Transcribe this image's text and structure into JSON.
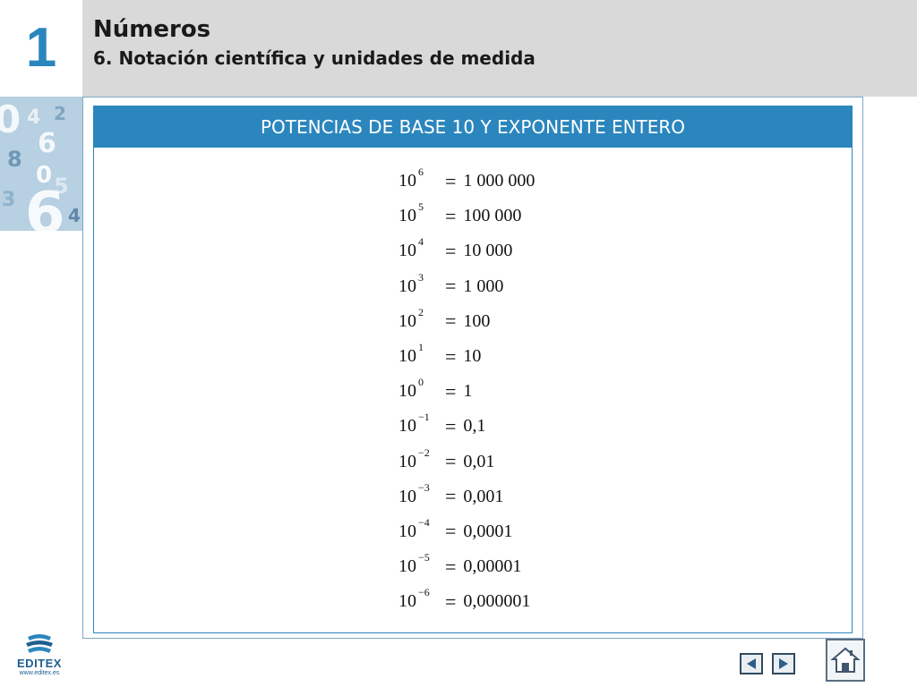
{
  "header": {
    "chapter_number": "1",
    "title": "Números",
    "subtitle": "6. Notación científica y unidades de medida"
  },
  "panel": {
    "title": "POTENCIAS DE BASE 10 Y EXPONENTE ENTERO",
    "powers": [
      {
        "base": "10",
        "exponent": "6",
        "value": "1 000 000"
      },
      {
        "base": "10",
        "exponent": "5",
        "value": "100 000"
      },
      {
        "base": "10",
        "exponent": "4",
        "value": "10 000"
      },
      {
        "base": "10",
        "exponent": "3",
        "value": "1 000"
      },
      {
        "base": "10",
        "exponent": "2",
        "value": "100"
      },
      {
        "base": "10",
        "exponent": "1",
        "value": "10"
      },
      {
        "base": "10",
        "exponent": "0",
        "value": "1"
      },
      {
        "base": "10",
        "exponent": "−1",
        "value": "0,1"
      },
      {
        "base": "10",
        "exponent": "−2",
        "value": "0,01"
      },
      {
        "base": "10",
        "exponent": "−3",
        "value": "0,001"
      },
      {
        "base": "10",
        "exponent": "−4",
        "value": "0,0001"
      },
      {
        "base": "10",
        "exponent": "−5",
        "value": "0,00001"
      },
      {
        "base": "10",
        "exponent": "−6",
        "value": "0,000001"
      }
    ],
    "equals_symbol": "="
  },
  "footer": {
    "logo_name": "EDITEX",
    "logo_url": "www.editex.es",
    "nav_prev_icon": "triangle-left-icon",
    "nav_next_icon": "triangle-right-icon",
    "home_icon": "house-icon"
  },
  "colors": {
    "accent": "#2b86be",
    "header_band": "#d9d9d9",
    "text": "#111111"
  }
}
